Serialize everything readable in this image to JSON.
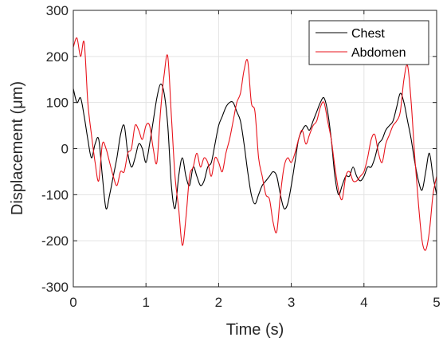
{
  "chart_data": {
    "type": "line",
    "xlabel": "Time (s)",
    "ylabel": "Displacement (μm)",
    "xlim": [
      0,
      5
    ],
    "ylim": [
      -300,
      300
    ],
    "x_ticks": [
      0,
      1,
      2,
      3,
      4,
      5
    ],
    "x_tick_labels": [
      "0",
      "1",
      "2",
      "3",
      "4",
      "5"
    ],
    "y_ticks": [
      -300,
      -200,
      -100,
      0,
      100,
      200,
      300
    ],
    "y_tick_labels": [
      "-300",
      "-200",
      "-100",
      "0",
      "100",
      "200",
      "300"
    ],
    "grid": true,
    "legend_position": "top-right",
    "series": [
      {
        "name": "Chest",
        "color": "#000000",
        "x": [
          0.0,
          0.05,
          0.1,
          0.15,
          0.2,
          0.25,
          0.3,
          0.35,
          0.4,
          0.45,
          0.5,
          0.55,
          0.6,
          0.65,
          0.7,
          0.75,
          0.8,
          0.85,
          0.9,
          0.95,
          1.0,
          1.05,
          1.1,
          1.15,
          1.2,
          1.25,
          1.3,
          1.35,
          1.4,
          1.45,
          1.5,
          1.55,
          1.6,
          1.65,
          1.7,
          1.75,
          1.8,
          1.85,
          1.9,
          1.95,
          2.0,
          2.05,
          2.1,
          2.15,
          2.2,
          2.25,
          2.3,
          2.35,
          2.4,
          2.45,
          2.5,
          2.55,
          2.6,
          2.65,
          2.7,
          2.75,
          2.8,
          2.85,
          2.9,
          2.95,
          3.0,
          3.05,
          3.1,
          3.15,
          3.2,
          3.25,
          3.3,
          3.35,
          3.4,
          3.45,
          3.5,
          3.55,
          3.6,
          3.65,
          3.7,
          3.75,
          3.8,
          3.85,
          3.9,
          3.95,
          4.0,
          4.05,
          4.1,
          4.15,
          4.2,
          4.25,
          4.3,
          4.35,
          4.4,
          4.45,
          4.5,
          4.55,
          4.6,
          4.65,
          4.7,
          4.75,
          4.8,
          4.85,
          4.9,
          4.95,
          5.0
        ],
        "y": [
          130,
          100,
          110,
          70,
          20,
          -20,
          10,
          20,
          -60,
          -130,
          -100,
          -60,
          -20,
          30,
          50,
          -10,
          -40,
          -20,
          10,
          0,
          -30,
          10,
          60,
          110,
          140,
          120,
          50,
          -80,
          -130,
          -60,
          -20,
          -60,
          -80,
          -40,
          -60,
          -80,
          -70,
          -40,
          -30,
          10,
          50,
          70,
          90,
          100,
          100,
          80,
          60,
          10,
          -50,
          -100,
          -120,
          -100,
          -80,
          -70,
          -60,
          -50,
          -60,
          -100,
          -130,
          -120,
          -80,
          -30,
          20,
          40,
          50,
          40,
          60,
          80,
          100,
          110,
          80,
          20,
          -60,
          -100,
          -80,
          -60,
          -60,
          -40,
          -60,
          -70,
          -60,
          -40,
          -40,
          -20,
          10,
          20,
          40,
          50,
          60,
          90,
          120,
          100,
          60,
          20,
          -30,
          -70,
          -90,
          -50,
          -10,
          -60,
          -100
        ]
      },
      {
        "name": "Abdomen",
        "color": "#e8141c",
        "x": [
          0.0,
          0.05,
          0.1,
          0.15,
          0.2,
          0.25,
          0.3,
          0.35,
          0.4,
          0.45,
          0.5,
          0.55,
          0.6,
          0.65,
          0.7,
          0.75,
          0.8,
          0.85,
          0.9,
          0.95,
          1.0,
          1.05,
          1.1,
          1.15,
          1.2,
          1.25,
          1.3,
          1.35,
          1.4,
          1.45,
          1.5,
          1.55,
          1.6,
          1.65,
          1.7,
          1.75,
          1.8,
          1.85,
          1.9,
          1.95,
          2.0,
          2.05,
          2.1,
          2.15,
          2.2,
          2.25,
          2.3,
          2.35,
          2.4,
          2.45,
          2.5,
          2.55,
          2.6,
          2.65,
          2.7,
          2.75,
          2.8,
          2.85,
          2.9,
          2.95,
          3.0,
          3.05,
          3.1,
          3.15,
          3.2,
          3.25,
          3.3,
          3.35,
          3.4,
          3.45,
          3.5,
          3.55,
          3.6,
          3.65,
          3.7,
          3.75,
          3.8,
          3.85,
          3.9,
          3.95,
          4.0,
          4.05,
          4.1,
          4.15,
          4.2,
          4.25,
          4.3,
          4.35,
          4.4,
          4.45,
          4.5,
          4.55,
          4.6,
          4.65,
          4.7,
          4.75,
          4.8,
          4.85,
          4.9,
          4.95,
          5.0
        ],
        "y": [
          220,
          240,
          200,
          230,
          100,
          30,
          -30,
          -70,
          10,
          0,
          -30,
          -60,
          -80,
          -50,
          -50,
          -10,
          0,
          50,
          40,
          20,
          50,
          50,
          0,
          -30,
          80,
          160,
          200,
          70,
          -60,
          -130,
          -210,
          -150,
          -60,
          -40,
          -10,
          -40,
          -20,
          -30,
          -60,
          -20,
          -30,
          -50,
          -10,
          20,
          60,
          100,
          120,
          170,
          190,
          100,
          80,
          -20,
          -60,
          -100,
          -110,
          -160,
          -180,
          -100,
          -40,
          -20,
          -30,
          -10,
          20,
          40,
          10,
          30,
          50,
          60,
          90,
          100,
          60,
          20,
          -40,
          -90,
          -110,
          -60,
          -50,
          -70,
          -70,
          -60,
          -50,
          -20,
          20,
          30,
          -10,
          -30,
          10,
          30,
          50,
          60,
          80,
          150,
          180,
          100,
          -20,
          -120,
          -200,
          -220,
          -180,
          -100,
          -60
        ]
      }
    ]
  }
}
